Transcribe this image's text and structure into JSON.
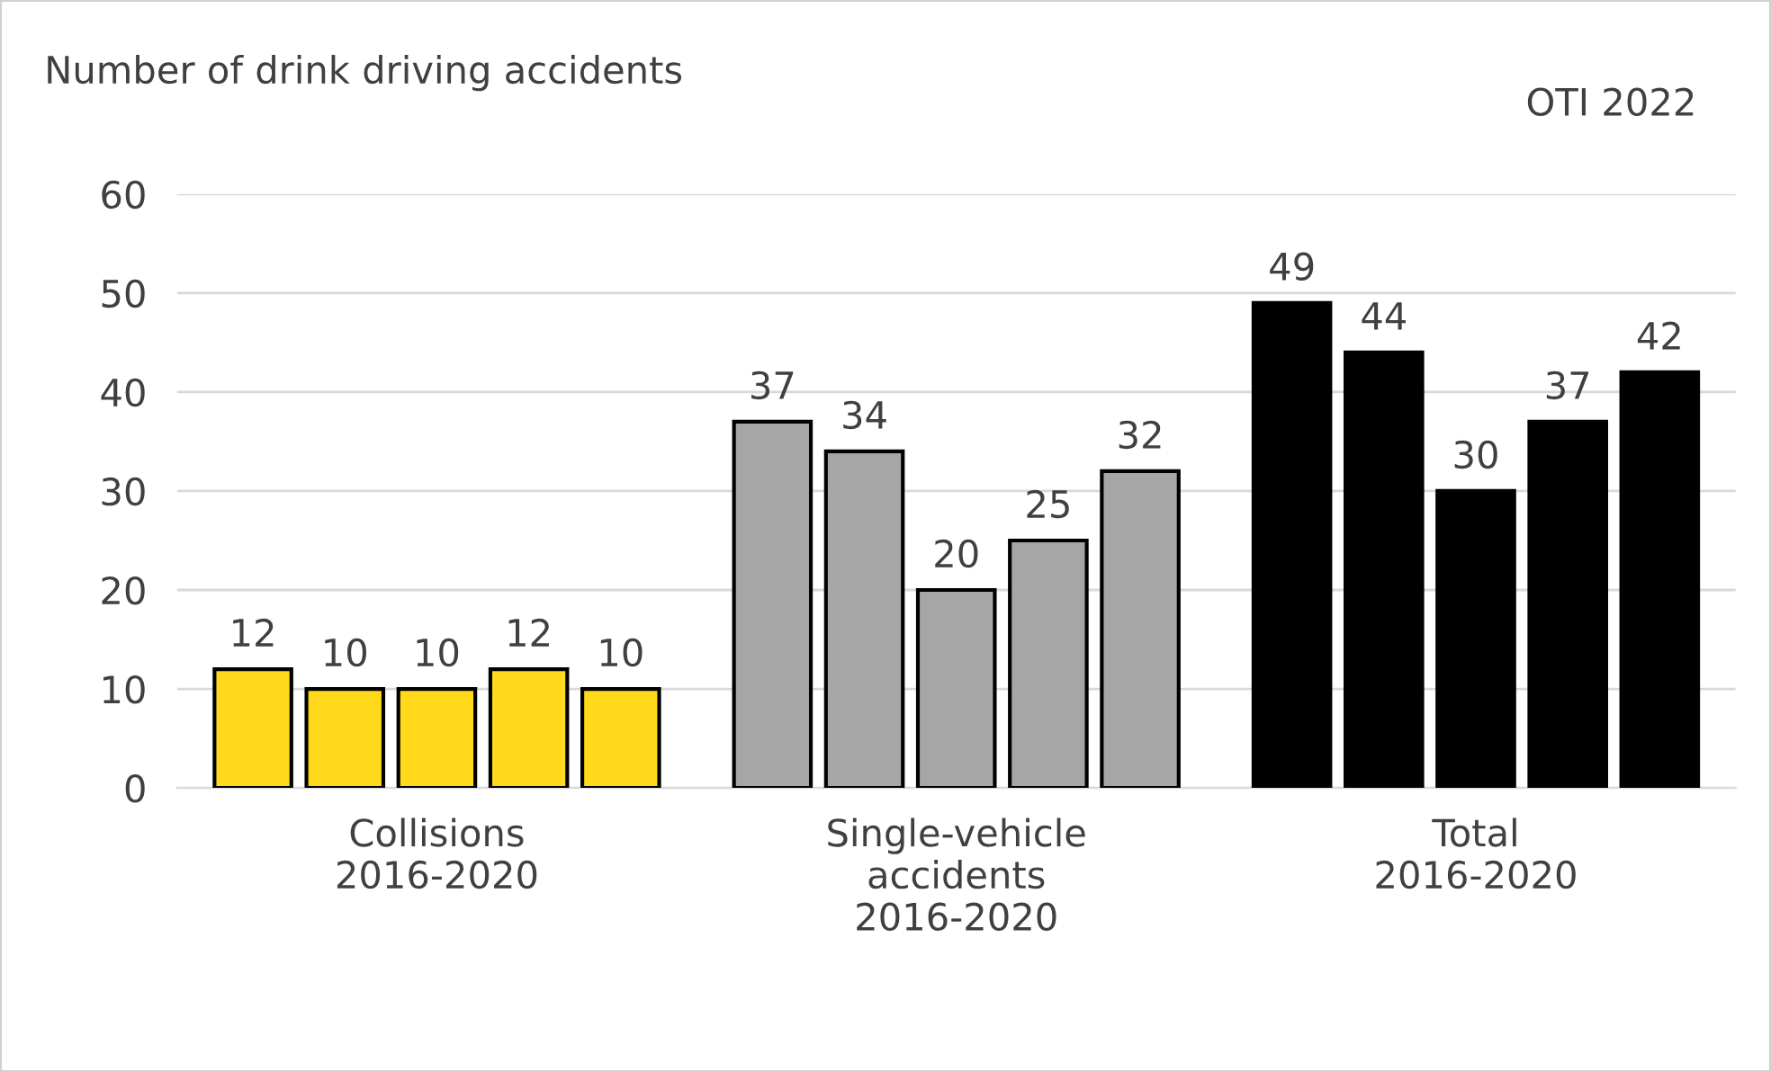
{
  "chart_data": {
    "type": "bar",
    "title": "Number of drink driving accidents",
    "annotations": [
      "OTI 2022"
    ],
    "categories": [
      "Collisions\n2016-2020",
      "Single-vehicle\naccidents\n2016-2020",
      "Total\n2016-2020"
    ],
    "series": [
      {
        "colors": [
          "#ffd91a",
          "#a6a6a6",
          "#000000"
        ],
        "values": [
          12,
          37,
          49
        ]
      },
      {
        "colors": [
          "#ffd91a",
          "#a6a6a6",
          "#000000"
        ],
        "values": [
          10,
          34,
          44
        ]
      },
      {
        "colors": [
          "#ffd91a",
          "#a6a6a6",
          "#000000"
        ],
        "values": [
          10,
          20,
          30
        ]
      },
      {
        "colors": [
          "#ffd91a",
          "#a6a6a6",
          "#000000"
        ],
        "values": [
          12,
          25,
          37
        ]
      },
      {
        "colors": [
          "#ffd91a",
          "#a6a6a6",
          "#000000"
        ],
        "values": [
          10,
          32,
          42
        ]
      }
    ],
    "ylim": [
      0,
      60
    ],
    "yticks": [
      0,
      10,
      20,
      30,
      40,
      50,
      60
    ],
    "grid": "y",
    "data_labels": true,
    "legend": false
  }
}
